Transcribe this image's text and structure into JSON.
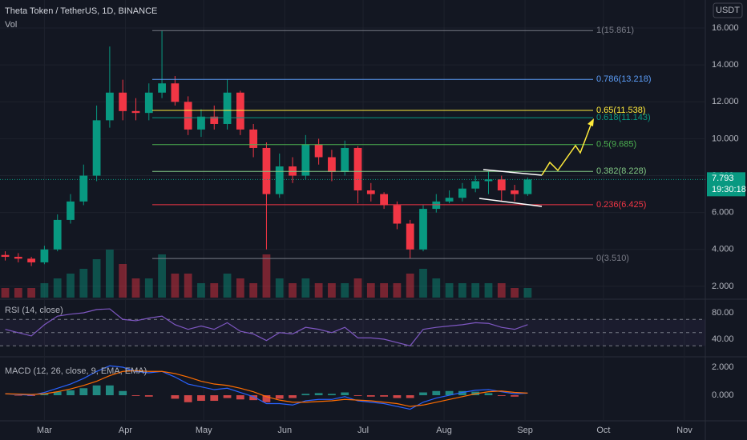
{
  "chart_data": [
    {
      "type": "candlestick",
      "title": "Theta Token / TetherUS, 1D, BINANCE",
      "volume_title": "Vol",
      "currency": "USDT",
      "up_color": "#089981",
      "down_color": "#f23645",
      "x": [
        -15,
        -10,
        -5,
        0,
        5,
        10,
        15,
        20,
        25,
        30,
        35,
        40,
        45,
        50,
        55,
        60,
        65,
        70,
        75,
        80,
        85,
        90,
        95,
        100,
        105,
        110,
        115,
        120,
        125,
        130,
        135,
        140,
        145,
        150,
        155,
        160,
        165,
        170,
        175,
        180,
        185
      ],
      "open": [
        3.7,
        3.6,
        3.5,
        3.3,
        4.0,
        5.6,
        6.6,
        8.0,
        11.0,
        12.5,
        11.5,
        11.4,
        12.5,
        13.0,
        12.0,
        10.5,
        11.2,
        10.8,
        12.5,
        10.5,
        9.5,
        7.0,
        8.5,
        8.0,
        9.7,
        9.0,
        8.2,
        9.5,
        7.2,
        7.0,
        6.4,
        5.4,
        4.0,
        6.2,
        6.6,
        6.8,
        7.3,
        7.7,
        7.8,
        7.2,
        7.0
      ],
      "high": [
        3.9,
        3.8,
        3.6,
        4.2,
        5.9,
        7.0,
        8.6,
        11.8,
        15.0,
        13.2,
        12.2,
        13.0,
        15.861,
        13.4,
        12.3,
        11.6,
        11.8,
        13.2,
        12.6,
        10.8,
        9.8,
        9.2,
        9.0,
        10.2,
        10.0,
        9.4,
        9.9,
        9.6,
        7.6,
        7.1,
        6.6,
        5.6,
        6.4,
        7.0,
        7.2,
        7.6,
        8.0,
        8.228,
        8.0,
        7.5,
        7.9
      ],
      "low": [
        3.4,
        3.3,
        3.1,
        3.2,
        3.9,
        5.4,
        6.4,
        7.7,
        10.6,
        11.0,
        11.0,
        11.0,
        12.2,
        11.8,
        10.2,
        10.1,
        10.5,
        10.5,
        10.2,
        9.0,
        4.0,
        6.8,
        7.6,
        7.8,
        8.6,
        7.7,
        8.0,
        6.5,
        6.6,
        6.2,
        5.1,
        3.51,
        3.9,
        6.0,
        6.5,
        6.6,
        7.1,
        7.0,
        6.6,
        6.6,
        6.9
      ],
      "close": [
        3.6,
        3.5,
        3.3,
        4.0,
        5.6,
        6.6,
        8.0,
        11.0,
        12.5,
        11.5,
        11.4,
        12.5,
        13.0,
        12.0,
        10.5,
        11.2,
        10.8,
        12.5,
        10.5,
        9.5,
        7.0,
        8.5,
        8.0,
        9.7,
        9.0,
        8.2,
        9.5,
        7.2,
        7.0,
        6.4,
        5.4,
        4.0,
        6.2,
        6.6,
        6.8,
        7.3,
        7.7,
        7.8,
        7.2,
        7.0,
        7.793
      ],
      "volume": [
        2,
        2,
        2,
        3,
        4,
        5,
        6,
        8,
        10,
        7,
        4,
        4,
        9,
        5,
        5,
        3,
        3,
        5,
        4,
        3,
        9,
        4,
        3,
        4,
        3,
        3,
        3,
        4,
        3,
        3,
        3,
        5,
        6,
        4,
        3,
        3,
        3,
        3,
        3,
        2,
        2
      ],
      "xlim": [
        -17,
        253
      ],
      "xticks": [
        {
          "value": 0,
          "label": "Mar"
        },
        {
          "value": 31,
          "label": "Apr"
        },
        {
          "value": 61,
          "label": "May"
        },
        {
          "value": 92,
          "label": "Jun"
        },
        {
          "value": 122,
          "label": "Jul"
        },
        {
          "value": 153,
          "label": "Aug"
        },
        {
          "value": 184,
          "label": "Sep"
        },
        {
          "value": 214,
          "label": "Oct"
        },
        {
          "value": 245,
          "label": "Nov"
        }
      ],
      "ylim": [
        1.39,
        17.52
      ],
      "yticks": [
        {
          "value": 16,
          "label": "16.000"
        },
        {
          "value": 14,
          "label": "14.000"
        },
        {
          "value": 12,
          "label": "12.000"
        },
        {
          "value": 10,
          "label": "10.000"
        },
        {
          "value": 8,
          "label": "8.000"
        },
        {
          "value": 6,
          "label": "6.000"
        },
        {
          "value": 4,
          "label": "4.000"
        },
        {
          "value": 2,
          "label": "2.000"
        }
      ],
      "levels": [
        {
          "label": "1(15.861)",
          "value": 15.861,
          "color": "#787b86"
        },
        {
          "label": "0.786(13.218)",
          "value": 13.218,
          "color": "#5b9cf6"
        },
        {
          "label": "0.65(11.538)",
          "value": 11.538,
          "color": "#ffeb3b"
        },
        {
          "label": "0.618(11.143)",
          "value": 11.143,
          "color": "#089981"
        },
        {
          "label": "0.5(9.685)",
          "value": 9.685,
          "color": "#4caf50"
        },
        {
          "label": "0.382(8.228)",
          "value": 8.228,
          "color": "#81c784"
        },
        {
          "label": "0.236(6.425)",
          "value": 6.425,
          "color": "#f23645"
        },
        {
          "label": "0(3.510)",
          "value": 3.51,
          "color": "#787b86"
        }
      ],
      "last_price": 7.793,
      "countdown": "19:30:18"
    },
    {
      "type": "line",
      "title": "RSI (14, close)",
      "color": "#7e57c2",
      "values": [
        55,
        50,
        45,
        62,
        75,
        78,
        80,
        85,
        86,
        70,
        68,
        72,
        75,
        62,
        55,
        60,
        55,
        65,
        52,
        48,
        38,
        50,
        48,
        58,
        55,
        50,
        58,
        42,
        42,
        40,
        35,
        30,
        55,
        58,
        60,
        62,
        65,
        64,
        58,
        55,
        62
      ],
      "band_levels": [
        70,
        50,
        30
      ],
      "ylim": [
        17,
        98.2
      ],
      "yticks": [
        {
          "value": 80,
          "label": "80.00"
        },
        {
          "value": 40,
          "label": "40.00"
        }
      ]
    },
    {
      "type": "macd",
      "title": "MACD (12, 26, close, 9, EMA, EMA)",
      "series": [
        {
          "color": "#2962ff",
          "values": [
            0.1,
            0.05,
            0,
            0.2,
            0.5,
            0.8,
            1.2,
            1.7,
            2.1,
            2.0,
            1.7,
            1.6,
            1.7,
            1.3,
            0.8,
            0.6,
            0.4,
            0.5,
            0.2,
            -0.1,
            -0.6,
            -0.6,
            -0.7,
            -0.4,
            -0.3,
            -0.3,
            -0.1,
            -0.4,
            -0.5,
            -0.6,
            -0.8,
            -1.0,
            -0.5,
            -0.2,
            0,
            0.2,
            0.35,
            0.4,
            0.25,
            0.1,
            0.15
          ]
        },
        {
          "color": "#ff6d00",
          "values": [
            0.1,
            0.08,
            0.05,
            0.1,
            0.25,
            0.45,
            0.7,
            1.0,
            1.4,
            1.7,
            1.75,
            1.7,
            1.7,
            1.55,
            1.3,
            1.0,
            0.8,
            0.7,
            0.5,
            0.25,
            -0.1,
            -0.35,
            -0.5,
            -0.5,
            -0.45,
            -0.4,
            -0.3,
            -0.35,
            -0.4,
            -0.5,
            -0.6,
            -0.8,
            -0.7,
            -0.5,
            -0.3,
            -0.1,
            0.1,
            0.25,
            0.3,
            0.2,
            0.15
          ]
        }
      ],
      "histogram": {
        "up_color": "#26a69a",
        "down_color": "#ff5252",
        "values": [
          0,
          -0.03,
          -0.05,
          0.1,
          0.25,
          0.35,
          0.5,
          0.7,
          0.7,
          0.3,
          -0.05,
          -0.1,
          0,
          -0.25,
          -0.5,
          -0.4,
          -0.4,
          -0.2,
          -0.3,
          -0.35,
          -0.5,
          -0.25,
          -0.2,
          0.1,
          0.15,
          0.1,
          0.2,
          -0.05,
          -0.1,
          -0.1,
          -0.2,
          -0.2,
          0.2,
          0.3,
          0.3,
          0.3,
          0.25,
          0.15,
          -0.05,
          -0.1,
          0
        ]
      },
      "ylim": [
        -1.77,
        2.63
      ],
      "yticks": [
        {
          "value": 2,
          "label": "2.000"
        },
        {
          "value": 0,
          "label": "0.000"
        }
      ]
    }
  ]
}
